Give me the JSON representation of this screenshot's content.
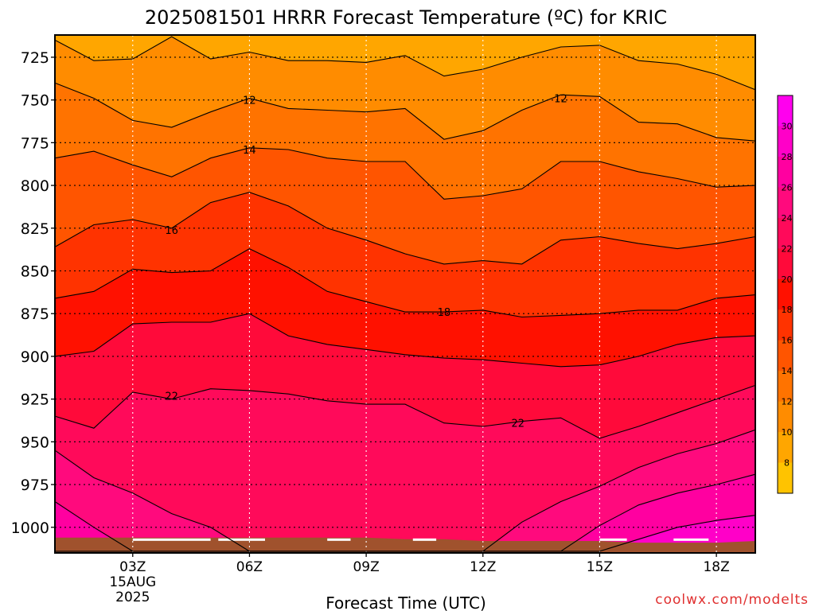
{
  "chart_data": {
    "type": "contour",
    "title": "2025081501 HRRR Forecast Temperature (ºC) for KRIC",
    "xlabel": "Forecast Time (UTC)",
    "ylabel": "",
    "credit": "coolwx.com/modelts",
    "y_axis": {
      "scale": "linear",
      "inverted": true,
      "ylim": [
        1015,
        712
      ],
      "ticks": [
        "725",
        "750",
        "775",
        "800",
        "825",
        "850",
        "875",
        "900",
        "925",
        "950",
        "975",
        "1000"
      ]
    },
    "x_axis": {
      "xlim_hours": [
        1,
        19
      ],
      "ticks": [
        {
          "label": "03Z",
          "date_line1": "15AUG",
          "date_line2": "2025"
        },
        {
          "label": "06Z"
        },
        {
          "label": "09Z"
        },
        {
          "label": "12Z"
        },
        {
          "label": "15Z"
        },
        {
          "label": "18Z"
        }
      ]
    },
    "grid": true,
    "colorbar": {
      "labels": [
        "8",
        "10",
        "12",
        "14",
        "16",
        "18",
        "20",
        "22",
        "24",
        "26",
        "28",
        "30"
      ]
    },
    "contour_labels": [
      {
        "text": "12",
        "x_hour": 6.0,
        "pressure": 750
      },
      {
        "text": "12",
        "x_hour": 14.0,
        "pressure": 749
      },
      {
        "text": "14",
        "x_hour": 6.0,
        "pressure": 779
      },
      {
        "text": "16",
        "x_hour": 4.0,
        "pressure": 826
      },
      {
        "text": "18",
        "x_hour": 11.0,
        "pressure": 874
      },
      {
        "text": "22",
        "x_hour": 4.0,
        "pressure": 923
      },
      {
        "text": "22",
        "x_hour": 12.9,
        "pressure": 939
      }
    ],
    "series": [
      {
        "x": [
          1,
          2,
          3,
          4,
          5,
          6,
          7,
          8,
          9,
          10,
          11,
          12,
          13,
          14,
          15,
          16,
          17,
          18,
          19
        ],
        "isotherm_10": [
          715,
          727,
          726,
          713,
          726,
          722,
          727,
          727,
          728,
          724,
          736,
          732,
          725,
          719,
          718,
          727,
          729,
          735,
          744
        ]
      },
      {
        "isotherm_12": [
          740,
          749,
          762,
          766,
          757,
          749,
          755,
          756,
          757,
          755,
          773,
          768,
          756,
          747,
          748,
          763,
          764,
          772,
          774
        ]
      },
      {
        "isotherm_14": [
          784,
          780,
          788,
          795,
          784,
          778,
          779,
          784,
          786,
          786,
          808,
          806,
          802,
          786,
          786,
          792,
          796,
          801,
          800
        ]
      },
      {
        "isotherm_16": [
          836,
          823,
          820,
          825,
          810,
          804,
          812,
          825,
          832,
          840,
          846,
          844,
          846,
          832,
          830,
          834,
          837,
          834,
          830
        ]
      },
      {
        "isotherm_18": [
          866,
          862,
          849,
          851,
          850,
          837,
          848,
          862,
          868,
          874,
          874,
          873,
          877,
          876,
          875,
          873,
          873,
          866,
          864
        ]
      },
      {
        "isotherm_20": [
          900,
          897,
          881,
          880,
          880,
          875,
          888,
          893,
          896,
          899,
          901,
          902,
          904,
          906,
          905,
          900,
          893,
          889,
          888
        ]
      },
      {
        "isotherm_22": [
          935,
          942,
          921,
          925,
          919,
          920,
          922,
          926,
          928,
          928,
          939,
          941,
          938,
          936,
          948,
          941,
          933,
          925,
          917
        ]
      },
      {
        "isotherm_24": [
          955,
          971,
          980,
          992,
          1000,
          1015,
          1015,
          1015,
          1015,
          1015,
          1015,
          1015,
          997,
          985,
          976,
          965,
          957,
          951,
          943
        ]
      },
      {
        "isotherm_26": [
          985,
          1000,
          1015,
          1015,
          1015,
          1015,
          1015,
          1015,
          1015,
          1015,
          1015,
          1015,
          1015,
          1015,
          999,
          987,
          980,
          975,
          969
        ]
      },
      {
        "isotherm_28": [
          1015,
          1015,
          1015,
          1015,
          1015,
          1015,
          1015,
          1015,
          1015,
          1015,
          1015,
          1015,
          1015,
          1015,
          1015,
          1007,
          1000,
          996,
          993
        ]
      }
    ],
    "surface_pressure": [
      1006,
      1006,
      1006,
      1006,
      1006,
      1006,
      1006,
      1006,
      1006,
      1007,
      1007,
      1008,
      1008,
      1008,
      1008,
      1009,
      1009,
      1009,
      1008
    ]
  }
}
